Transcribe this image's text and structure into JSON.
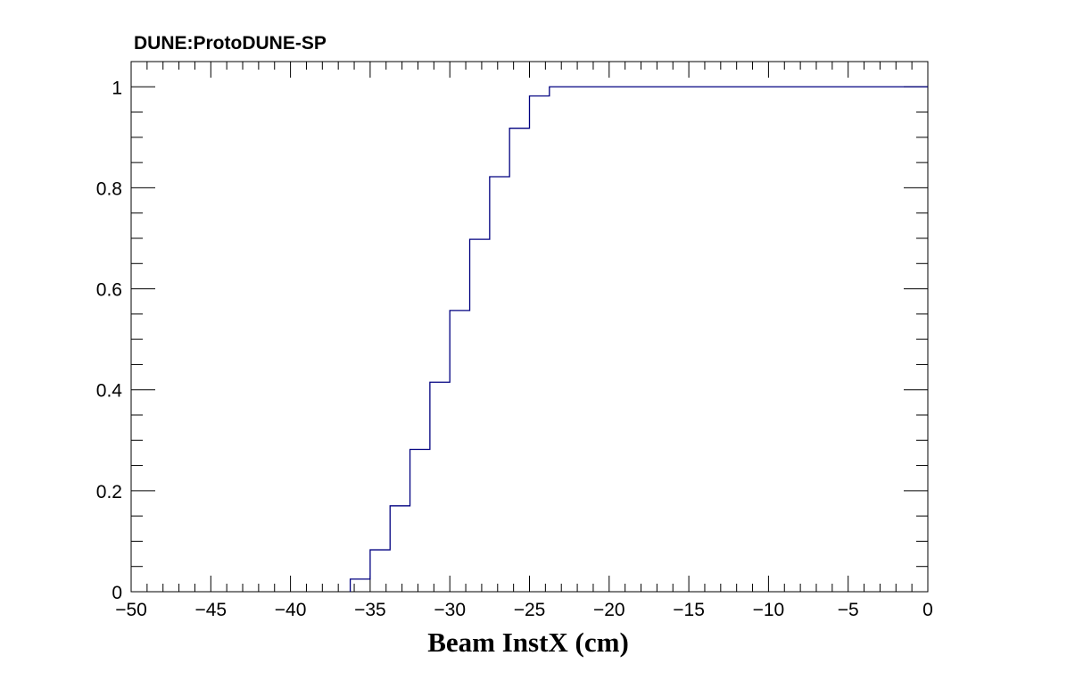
{
  "chart_data": {
    "type": "line",
    "title": "DUNE:ProtoDUNE-SP",
    "xlabel": "Beam InstX (cm)",
    "ylabel": "",
    "xlim": [
      -50,
      0
    ],
    "ylim": [
      0,
      1.05
    ],
    "x_ticks": [
      "−50",
      "−45",
      "−40",
      "−35",
      "−30",
      "−25",
      "−20",
      "−15",
      "−10",
      "−5",
      "0"
    ],
    "y_ticks": [
      "0",
      "0.2",
      "0.4",
      "0.6",
      "0.8",
      "1"
    ],
    "x_tick_values": [
      -50,
      -45,
      -40,
      -35,
      -30,
      -25,
      -20,
      -15,
      -10,
      -5,
      0
    ],
    "y_tick_values": [
      0,
      0.2,
      0.4,
      0.6,
      0.8,
      1
    ],
    "grid": false,
    "line_color": "#000080",
    "series": [
      {
        "style": "step",
        "bin_edges": [
          -36.25,
          -35.0,
          -33.75,
          -32.5,
          -31.25,
          -30.0,
          -28.75,
          -27.5,
          -26.25,
          -25.0,
          -23.75,
          0.0
        ],
        "values": [
          0.025,
          0.083,
          0.17,
          0.282,
          0.415,
          0.557,
          0.698,
          0.822,
          0.918,
          0.982,
          1.0
        ]
      }
    ]
  }
}
